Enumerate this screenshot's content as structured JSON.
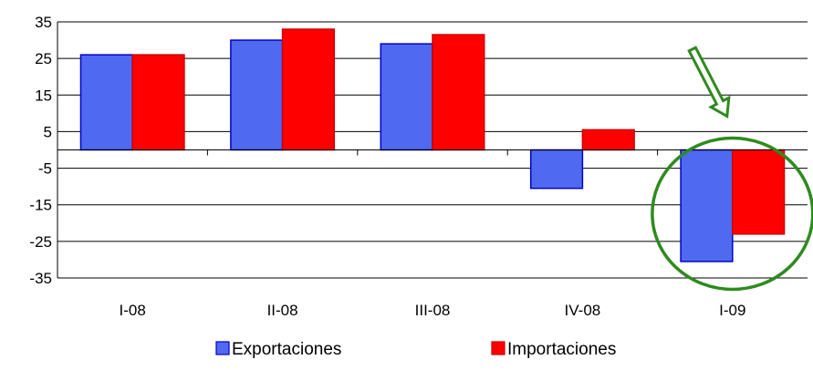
{
  "chart_data": {
    "type": "bar",
    "title": "",
    "xlabel": "",
    "ylabel": "",
    "categories": [
      "I-08",
      "II-08",
      "III-08",
      "IV-08",
      "I-09"
    ],
    "series": [
      {
        "name": "Exportaciones",
        "values": [
          26,
          30,
          29,
          -10.5,
          -30.5
        ],
        "color": "#4F6AF0",
        "edge_color": "#0000CC"
      },
      {
        "name": "Importaciones",
        "values": [
          26,
          33,
          31.5,
          5.5,
          -23
        ],
        "color": "#FF0000",
        "edge_color": "#CC0000"
      }
    ],
    "ylim": [
      -35,
      35
    ],
    "yticks": [
      35,
      25,
      15,
      5,
      -5,
      -15,
      -25,
      -35
    ],
    "grid": true,
    "legend_position": "bottom",
    "annotation": {
      "type": "circle-and-arrow",
      "target_category": "I-09",
      "color": "#2E8B1E",
      "arrow_fill": "#FFFFFF"
    }
  }
}
